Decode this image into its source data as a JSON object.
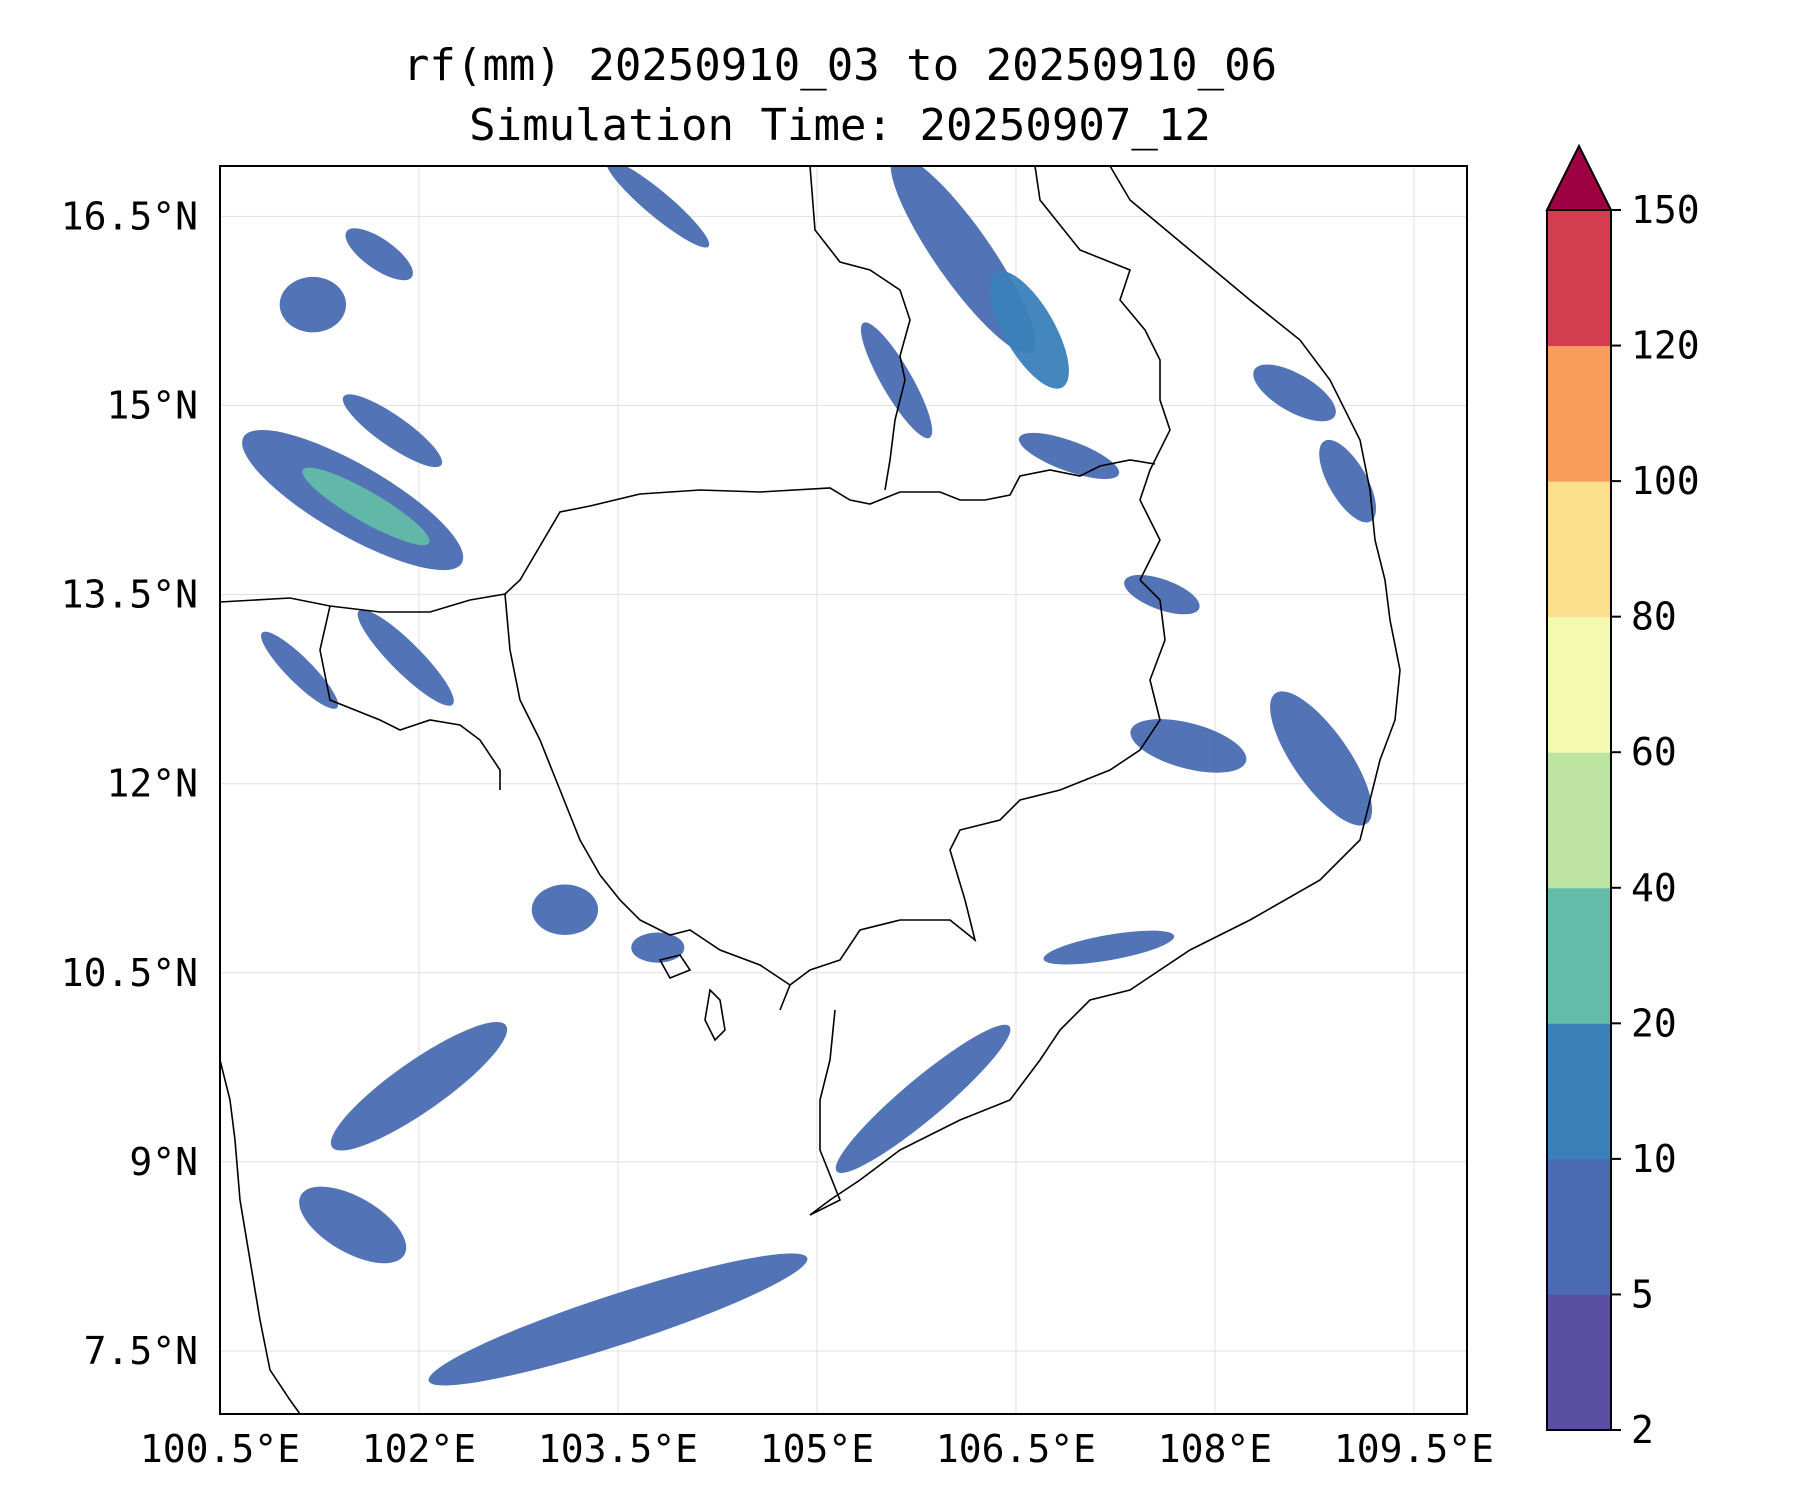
{
  "title": {
    "line1": "rf(mm) 20250910_03 to 20250910_06",
    "line2": "Simulation Time: 20250907_12"
  },
  "map": {
    "variable": "rf(mm)",
    "extent": {
      "lon_min": 100.5,
      "lon_max": 109.9,
      "lat_min": 7.0,
      "lat_max": 16.9
    },
    "lon_ticks": [
      {
        "value": 100.5,
        "label": "100.5°E"
      },
      {
        "value": 102.0,
        "label": "102°E"
      },
      {
        "value": 103.5,
        "label": "103.5°E"
      },
      {
        "value": 105.0,
        "label": "105°E"
      },
      {
        "value": 106.5,
        "label": "106.5°E"
      },
      {
        "value": 108.0,
        "label": "108°E"
      },
      {
        "value": 109.5,
        "label": "109.5°E"
      }
    ],
    "lat_ticks": [
      {
        "value": 16.5,
        "label": "16.5°N"
      },
      {
        "value": 15.0,
        "label": "15°N"
      },
      {
        "value": 13.5,
        "label": "13.5°N"
      },
      {
        "value": 12.0,
        "label": "12°N"
      },
      {
        "value": 10.5,
        "label": "10.5°N"
      },
      {
        "value": 9.0,
        "label": "9°N"
      },
      {
        "value": 7.5,
        "label": "7.5°N"
      }
    ],
    "gridlines": true
  },
  "colorbar": {
    "levels": [
      {
        "value": 2,
        "label": "2"
      },
      {
        "value": 5,
        "label": "5"
      },
      {
        "value": 10,
        "label": "10"
      },
      {
        "value": 20,
        "label": "20"
      },
      {
        "value": 40,
        "label": "40"
      },
      {
        "value": 60,
        "label": "60"
      },
      {
        "value": 80,
        "label": "80"
      },
      {
        "value": 100,
        "label": "100"
      },
      {
        "value": 120,
        "label": "120"
      },
      {
        "value": 150,
        "label": "150"
      }
    ],
    "colors": [
      "#5a4fa3",
      "#4a6bb3",
      "#3a81ba",
      "#62bca8",
      "#bde3a0",
      "#f3faaf",
      "#fcdf8d",
      "#f89d5b",
      "#d43d4f"
    ],
    "extend_color": "#9e0142",
    "extend": "max"
  },
  "rain_cells": [
    {
      "name": "w-thailand-band",
      "lon": 101.5,
      "lat": 14.25,
      "rx": 0.95,
      "ry": 0.28,
      "rot": 30,
      "value": 8
    },
    {
      "name": "w-thailand-core",
      "lon": 101.6,
      "lat": 14.2,
      "rx": 0.55,
      "ry": 0.12,
      "rot": 30,
      "value": 22
    },
    {
      "name": "nw-cell-1",
      "lon": 101.2,
      "lat": 15.8,
      "rx": 0.25,
      "ry": 0.22,
      "rot": 0,
      "value": 6
    },
    {
      "name": "nw-cell-2",
      "lon": 101.7,
      "lat": 16.2,
      "rx": 0.3,
      "ry": 0.12,
      "rot": 35,
      "value": 5
    },
    {
      "name": "nw-cell-3",
      "lon": 101.8,
      "lat": 14.8,
      "rx": 0.45,
      "ry": 0.12,
      "rot": 35,
      "value": 6
    },
    {
      "name": "nw-cell-4",
      "lon": 101.9,
      "lat": 13.0,
      "rx": 0.5,
      "ry": 0.12,
      "rot": 45,
      "value": 9
    },
    {
      "name": "nw-cell-5",
      "lon": 101.1,
      "lat": 12.9,
      "rx": 0.4,
      "ry": 0.1,
      "rot": 45,
      "value": 6
    },
    {
      "name": "n-laos-cell",
      "lon": 103.8,
      "lat": 16.6,
      "rx": 0.5,
      "ry": 0.1,
      "rot": 40,
      "value": 5
    },
    {
      "name": "ne-band-1",
      "lon": 106.1,
      "lat": 16.2,
      "rx": 0.9,
      "ry": 0.22,
      "rot": 55,
      "value": 8
    },
    {
      "name": "ne-band-2",
      "lon": 106.6,
      "lat": 15.6,
      "rx": 0.5,
      "ry": 0.2,
      "rot": 60,
      "value": 12
    },
    {
      "name": "ne-band-3",
      "lon": 105.6,
      "lat": 15.2,
      "rx": 0.5,
      "ry": 0.12,
      "rot": 60,
      "value": 6
    },
    {
      "name": "ne-band-4",
      "lon": 106.9,
      "lat": 14.6,
      "rx": 0.4,
      "ry": 0.12,
      "rot": 20,
      "value": 7
    },
    {
      "name": "vietnam-coast-1",
      "lon": 108.6,
      "lat": 15.1,
      "rx": 0.35,
      "ry": 0.15,
      "rot": 30,
      "value": 7
    },
    {
      "name": "vietnam-coast-2",
      "lon": 109.0,
      "lat": 14.4,
      "rx": 0.35,
      "ry": 0.15,
      "rot": 60,
      "value": 8
    },
    {
      "name": "vietnam-coast-3",
      "lon": 108.8,
      "lat": 12.2,
      "rx": 0.6,
      "ry": 0.22,
      "rot": 55,
      "value": 9
    },
    {
      "name": "vietnam-highland",
      "lon": 107.8,
      "lat": 12.3,
      "rx": 0.45,
      "ry": 0.18,
      "rot": 15,
      "value": 7
    },
    {
      "name": "vietnam-highland-2",
      "lon": 107.6,
      "lat": 13.5,
      "rx": 0.3,
      "ry": 0.12,
      "rot": 20,
      "value": 6
    },
    {
      "name": "gulf-cell-1",
      "lon": 103.1,
      "lat": 11.0,
      "rx": 0.25,
      "ry": 0.2,
      "rot": 0,
      "value": 7
    },
    {
      "name": "gulf-cell-2",
      "lon": 103.8,
      "lat": 10.7,
      "rx": 0.2,
      "ry": 0.12,
      "rot": 0,
      "value": 6
    },
    {
      "name": "gulf-band",
      "lon": 102.0,
      "lat": 9.6,
      "rx": 0.8,
      "ry": 0.2,
      "rot": -35,
      "value": 6
    },
    {
      "name": "mekong-delta-band",
      "lon": 105.8,
      "lat": 9.5,
      "rx": 0.85,
      "ry": 0.16,
      "rot": -40,
      "value": 7
    },
    {
      "name": "south-sea-band",
      "lon": 103.5,
      "lat": 7.75,
      "rx": 1.5,
      "ry": 0.2,
      "rot": -18,
      "value": 6
    },
    {
      "name": "sw-gulf-cell",
      "lon": 101.5,
      "lat": 8.5,
      "rx": 0.45,
      "ry": 0.22,
      "rot": 30,
      "value": 5
    },
    {
      "name": "coast-ba-ria",
      "lon": 107.2,
      "lat": 10.7,
      "rx": 0.5,
      "ry": 0.1,
      "rot": -10,
      "value": 6
    }
  ]
}
